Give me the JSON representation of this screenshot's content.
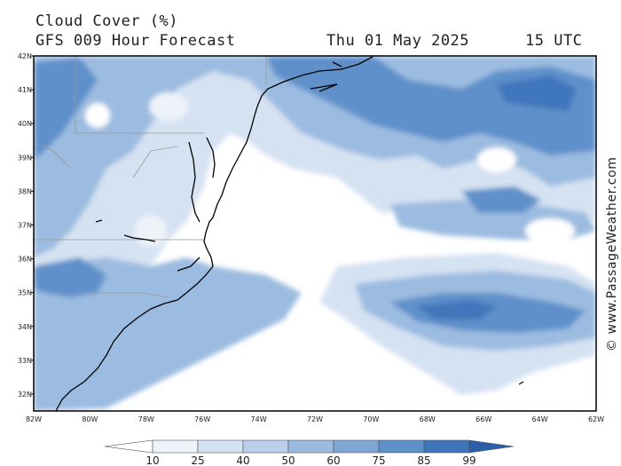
{
  "header": {
    "title": "Cloud Cover (%)",
    "subtitle": "GFS 009 Hour Forecast",
    "date": "Thu 01 May 2025",
    "time": "15 UTC"
  },
  "map": {
    "lat_labels": [
      "42N",
      "41N",
      "40N",
      "39N",
      "38N",
      "37N",
      "36N",
      "35N",
      "34N",
      "33N",
      "32N"
    ],
    "lon_labels": [
      "82W",
      "80W",
      "78W",
      "76W",
      "74W",
      "72W",
      "70W",
      "68W",
      "66W",
      "64W",
      "62W"
    ],
    "extent": {
      "west": -82,
      "east": -62,
      "south": 31.5,
      "north": 42
    },
    "watermark": "© www.PassageWeather.com"
  },
  "legend": {
    "levels": [
      "10",
      "25",
      "40",
      "50",
      "60",
      "75",
      "85",
      "99"
    ],
    "colors": [
      "#ffffff",
      "#eef3fa",
      "#d5e2f2",
      "#b9cfea",
      "#9bbbe0",
      "#7ea7d6",
      "#5e90ca",
      "#3f76bb",
      "#2b5fa8"
    ]
  },
  "colors": {
    "land_border": "#999999",
    "coastline": "#000000",
    "frame": "#000000"
  }
}
